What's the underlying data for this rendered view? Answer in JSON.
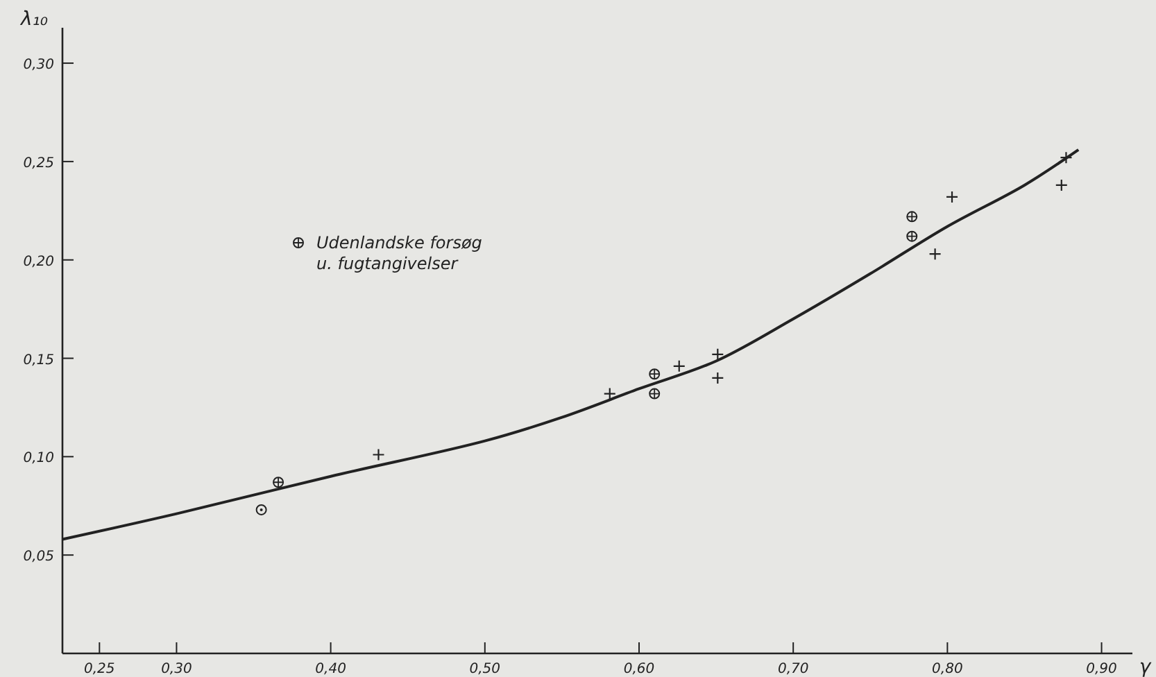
{
  "chart_data": {
    "type": "scatter",
    "xlabel": "γ",
    "ylabel": "λ₁₀",
    "xlim": [
      0.226,
      0.92
    ],
    "ylim": [
      0,
      0.318
    ],
    "xticks": [
      {
        "value": 0.25,
        "label": "0,25"
      },
      {
        "value": 0.3,
        "label": "0,30"
      },
      {
        "value": 0.4,
        "label": "0,40"
      },
      {
        "value": 0.5,
        "label": "0,50"
      },
      {
        "value": 0.6,
        "label": "0,60"
      },
      {
        "value": 0.7,
        "label": "0,70"
      },
      {
        "value": 0.8,
        "label": "0,80"
      },
      {
        "value": 0.9,
        "label": "0,90"
      }
    ],
    "yticks": [
      {
        "value": 0.05,
        "label": "0,05"
      },
      {
        "value": 0.1,
        "label": "0,10"
      },
      {
        "value": 0.15,
        "label": "0,15"
      },
      {
        "value": 0.2,
        "label": "0,20"
      },
      {
        "value": 0.25,
        "label": "0,25"
      },
      {
        "value": 0.3,
        "label": "0,30"
      }
    ],
    "grid": false,
    "legend": "left",
    "series": [
      {
        "marker": "circle",
        "color": "#222222",
        "x": [
          0.355
        ],
        "values": [
          0.073
        ]
      },
      {
        "marker": "cross",
        "color": "#222222",
        "x": [
          0.431,
          0.581,
          0.626,
          0.651,
          0.651,
          0.792,
          0.803,
          0.874,
          0.877
        ],
        "values": [
          0.101,
          0.132,
          0.146,
          0.152,
          0.14,
          0.203,
          0.232,
          0.238,
          0.252
        ]
      },
      {
        "marker": "circle",
        "name": "Udenlandske forsøg u. fugtangivelser",
        "color": "#222222",
        "x": [
          0.366,
          0.61,
          0.61,
          0.777,
          0.777
        ],
        "values": [
          0.087,
          0.142,
          0.132,
          0.222,
          0.212
        ]
      },
      {
        "type": "line",
        "color": "#222222",
        "x": [
          0.226,
          0.3,
          0.4,
          0.5,
          0.55,
          0.6,
          0.65,
          0.7,
          0.75,
          0.8,
          0.85,
          0.885
        ],
        "values": [
          0.058,
          0.071,
          0.09,
          0.108,
          0.12,
          0.1345,
          0.1486,
          0.17,
          0.193,
          0.217,
          0.238,
          0.256
        ]
      }
    ]
  }
}
